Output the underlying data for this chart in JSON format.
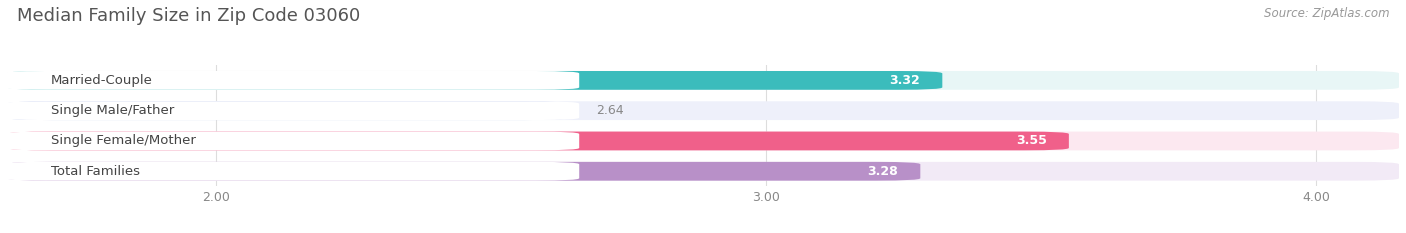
{
  "title": "Median Family Size in Zip Code 03060",
  "source": "Source: ZipAtlas.com",
  "categories": [
    "Married-Couple",
    "Single Male/Father",
    "Single Female/Mother",
    "Total Families"
  ],
  "values": [
    3.32,
    2.64,
    3.55,
    3.28
  ],
  "bar_colors": [
    "#3bbcbc",
    "#aab8e8",
    "#f0608a",
    "#b890c8"
  ],
  "bar_bg_colors": [
    "#e8f6f6",
    "#eef0fa",
    "#fce8f0",
    "#f2eaf6"
  ],
  "value_inside": [
    true,
    false,
    true,
    true
  ],
  "xlim_left": 1.62,
  "xlim_right": 4.15,
  "xticks": [
    2.0,
    3.0,
    4.0
  ],
  "xtick_labels": [
    "2.00",
    "3.00",
    "4.00"
  ],
  "bar_height": 0.62,
  "bar_gap": 0.38,
  "label_fontsize": 9.5,
  "value_fontsize": 9,
  "title_fontsize": 13,
  "source_fontsize": 8.5,
  "bg_color": "#ffffff",
  "title_color": "#555555",
  "source_color": "#999999",
  "label_color": "#444444",
  "inside_value_color": "#ffffff",
  "outside_value_color": "#888888"
}
